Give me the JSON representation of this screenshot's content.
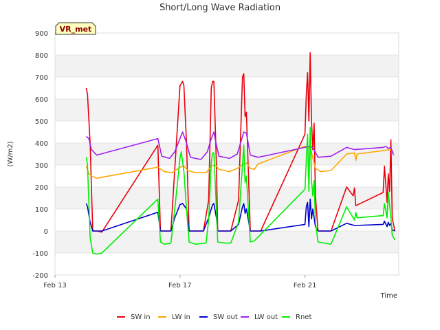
{
  "chart_data": {
    "type": "line",
    "title": "Short/Long Wave Radiation",
    "xlabel": "Time",
    "ylabel": "(W/m2)",
    "badge": "VR_met",
    "x_domain": [
      "2023-02-13",
      "2023-02-24"
    ],
    "x_ticks": [
      {
        "value": "2023-02-13",
        "label": "Feb 13"
      },
      {
        "value": "2023-02-17",
        "label": "Feb 17"
      },
      {
        "value": "2023-02-21",
        "label": "Feb 21"
      }
    ],
    "ylim": [
      -200,
      900
    ],
    "y_ticks": [
      -200,
      -100,
      0,
      100,
      200,
      300,
      400,
      500,
      600,
      700,
      800,
      900
    ],
    "grid": "horizontal alternating bands",
    "legend_position": "bottom",
    "series": [
      {
        "name": "SW in",
        "color": "#e8000b",
        "points": [
          [
            "2023-02-14 00:00",
            650
          ],
          [
            "2023-02-14 01:00",
            620
          ],
          [
            "2023-02-14 03:00",
            400
          ],
          [
            "2023-02-14 05:00",
            0
          ],
          [
            "2023-02-14 08:00",
            0
          ],
          [
            "2023-02-14 12:00",
            -5
          ],
          [
            "2023-02-16 07:00",
            390
          ],
          [
            "2023-02-16 09:00",
            0
          ],
          [
            "2023-02-16 12:00",
            0
          ],
          [
            "2023-02-16 17:00",
            0
          ],
          [
            "2023-02-16 20:00",
            280
          ],
          [
            "2023-02-17 00:00",
            660
          ],
          [
            "2023-02-17 02:00",
            680
          ],
          [
            "2023-02-17 03:00",
            660
          ],
          [
            "2023-02-17 05:00",
            400
          ],
          [
            "2023-02-17 07:00",
            0
          ],
          [
            "2023-02-17 18:00",
            0
          ],
          [
            "2023-02-17 22:00",
            140
          ],
          [
            "2023-02-18 00:00",
            650
          ],
          [
            "2023-02-18 01:00",
            680
          ],
          [
            "2023-02-18 02:00",
            680
          ],
          [
            "2023-02-18 04:00",
            300
          ],
          [
            "2023-02-18 05:00",
            0
          ],
          [
            "2023-02-18 15:00",
            0
          ],
          [
            "2023-02-18 21:00",
            140
          ],
          [
            "2023-02-19 00:00",
            700
          ],
          [
            "2023-02-19 01:00",
            715
          ],
          [
            "2023-02-19 02:00",
            520
          ],
          [
            "2023-02-19 03:00",
            540
          ],
          [
            "2023-02-19 06:00",
            0
          ],
          [
            "2023-02-19 14:00",
            0
          ],
          [
            "2023-02-21 00:00",
            440
          ],
          [
            "2023-02-21 01:00",
            620
          ],
          [
            "2023-02-21 02:00",
            720
          ],
          [
            "2023-02-21 03:00",
            500
          ],
          [
            "2023-02-21 04:00",
            810
          ],
          [
            "2023-02-21 05:00",
            500
          ],
          [
            "2023-02-21 06:00",
            370
          ],
          [
            "2023-02-21 07:00",
            490
          ],
          [
            "2023-02-21 08:00",
            160
          ],
          [
            "2023-02-21 10:00",
            0
          ],
          [
            "2023-02-21 15:00",
            0
          ],
          [
            "2023-02-21 20:00",
            0
          ],
          [
            "2023-02-22 08:00",
            200
          ],
          [
            "2023-02-22 13:00",
            160
          ],
          [
            "2023-02-22 14:00",
            195
          ],
          [
            "2023-02-22 15:00",
            115
          ],
          [
            "2023-02-23 12:00",
            175
          ],
          [
            "2023-02-23 13:00",
            295
          ],
          [
            "2023-02-23 15:00",
            130
          ],
          [
            "2023-02-23 16:00",
            260
          ],
          [
            "2023-02-23 17:00",
            180
          ],
          [
            "2023-02-23 18:00",
            415
          ],
          [
            "2023-02-23 19:00",
            60
          ],
          [
            "2023-02-23 21:00",
            0
          ]
        ]
      },
      {
        "name": "LW in",
        "color": "#ffa500",
        "points": [
          [
            "2023-02-14 00:00",
            295
          ],
          [
            "2023-02-14 02:00",
            260
          ],
          [
            "2023-02-14 04:00",
            250
          ],
          [
            "2023-02-14 08:00",
            240
          ],
          [
            "2023-02-16 07:00",
            290
          ],
          [
            "2023-02-16 12:00",
            270
          ],
          [
            "2023-02-16 18:00",
            265
          ],
          [
            "2023-02-17 00:00",
            290
          ],
          [
            "2023-02-17 03:00",
            295
          ],
          [
            "2023-02-17 06:00",
            275
          ],
          [
            "2023-02-17 12:00",
            265
          ],
          [
            "2023-02-17 20:00",
            265
          ],
          [
            "2023-02-18 00:00",
            295
          ],
          [
            "2023-02-18 03:00",
            300
          ],
          [
            "2023-02-18 06:00",
            280
          ],
          [
            "2023-02-18 14:00",
            270
          ],
          [
            "2023-02-18 20:00",
            285
          ],
          [
            "2023-02-19 00:00",
            300
          ],
          [
            "2023-02-19 03:00",
            310
          ],
          [
            "2023-02-19 06:00",
            285
          ],
          [
            "2023-02-19 09:00",
            280
          ],
          [
            "2023-02-19 12:00",
            305
          ],
          [
            "2023-02-21 00:00",
            385
          ],
          [
            "2023-02-21 04:00",
            380
          ],
          [
            "2023-02-21 08:00",
            285
          ],
          [
            "2023-02-21 12:00",
            270
          ],
          [
            "2023-02-21 20:00",
            275
          ],
          [
            "2023-02-22 08:00",
            350
          ],
          [
            "2023-02-22 14:00",
            355
          ],
          [
            "2023-02-22 15:00",
            320
          ],
          [
            "2023-02-22 16:00",
            350
          ],
          [
            "2023-02-23 18:00",
            370
          ],
          [
            "2023-02-23 20:00",
            355
          ]
        ]
      },
      {
        "name": "SW out",
        "color": "#0000cc",
        "points": [
          [
            "2023-02-14 00:00",
            125
          ],
          [
            "2023-02-14 01:00",
            110
          ],
          [
            "2023-02-14 03:00",
            40
          ],
          [
            "2023-02-14 05:00",
            0
          ],
          [
            "2023-02-14 12:00",
            0
          ],
          [
            "2023-02-16 07:00",
            85
          ],
          [
            "2023-02-16 09:00",
            0
          ],
          [
            "2023-02-16 17:00",
            0
          ],
          [
            "2023-02-16 20:00",
            60
          ],
          [
            "2023-02-17 00:00",
            120
          ],
          [
            "2023-02-17 02:00",
            125
          ],
          [
            "2023-02-17 05:00",
            100
          ],
          [
            "2023-02-17 07:00",
            0
          ],
          [
            "2023-02-17 18:00",
            0
          ],
          [
            "2023-02-17 22:00",
            60
          ],
          [
            "2023-02-18 01:00",
            120
          ],
          [
            "2023-02-18 02:00",
            125
          ],
          [
            "2023-02-18 04:00",
            60
          ],
          [
            "2023-02-18 05:00",
            0
          ],
          [
            "2023-02-18 15:00",
            0
          ],
          [
            "2023-02-18 21:00",
            30
          ],
          [
            "2023-02-19 00:00",
            110
          ],
          [
            "2023-02-19 01:00",
            125
          ],
          [
            "2023-02-19 02:00",
            80
          ],
          [
            "2023-02-19 03:00",
            100
          ],
          [
            "2023-02-19 06:00",
            0
          ],
          [
            "2023-02-19 14:00",
            0
          ],
          [
            "2023-02-21 00:00",
            30
          ],
          [
            "2023-02-21 01:00",
            110
          ],
          [
            "2023-02-21 02:00",
            130
          ],
          [
            "2023-02-21 03:00",
            20
          ],
          [
            "2023-02-21 04:00",
            145
          ],
          [
            "2023-02-21 05:00",
            55
          ],
          [
            "2023-02-21 06:00",
            100
          ],
          [
            "2023-02-21 08:00",
            20
          ],
          [
            "2023-02-21 10:00",
            0
          ],
          [
            "2023-02-21 20:00",
            0
          ],
          [
            "2023-02-22 08:00",
            35
          ],
          [
            "2023-02-22 14:00",
            25
          ],
          [
            "2023-02-23 12:00",
            30
          ],
          [
            "2023-02-23 13:00",
            45
          ],
          [
            "2023-02-23 15:00",
            20
          ],
          [
            "2023-02-23 16:00",
            40
          ],
          [
            "2023-02-23 17:00",
            25
          ],
          [
            "2023-02-23 18:00",
            35
          ],
          [
            "2023-02-23 19:00",
            5
          ],
          [
            "2023-02-23 21:00",
            0
          ]
        ]
      },
      {
        "name": "LW out",
        "color": "#a020f0",
        "points": [
          [
            "2023-02-14 00:00",
            430
          ],
          [
            "2023-02-14 02:00",
            420
          ],
          [
            "2023-02-14 04:00",
            370
          ],
          [
            "2023-02-14 08:00",
            345
          ],
          [
            "2023-02-16 07:00",
            420
          ],
          [
            "2023-02-16 10:00",
            340
          ],
          [
            "2023-02-16 16:00",
            330
          ],
          [
            "2023-02-16 20:00",
            360
          ],
          [
            "2023-02-17 00:00",
            420
          ],
          [
            "2023-02-17 02:00",
            450
          ],
          [
            "2023-02-17 05:00",
            400
          ],
          [
            "2023-02-17 08:00",
            335
          ],
          [
            "2023-02-17 16:00",
            325
          ],
          [
            "2023-02-17 21:00",
            360
          ],
          [
            "2023-02-18 00:00",
            420
          ],
          [
            "2023-02-18 02:00",
            450
          ],
          [
            "2023-02-18 04:00",
            390
          ],
          [
            "2023-02-18 06:00",
            340
          ],
          [
            "2023-02-18 14:00",
            330
          ],
          [
            "2023-02-18 20:00",
            350
          ],
          [
            "2023-02-19 00:00",
            430
          ],
          [
            "2023-02-19 01:00",
            450
          ],
          [
            "2023-02-19 03:00",
            445
          ],
          [
            "2023-02-19 06:00",
            345
          ],
          [
            "2023-02-19 12:00",
            335
          ],
          [
            "2023-02-21 00:00",
            380
          ],
          [
            "2023-02-21 03:00",
            385
          ],
          [
            "2023-02-21 06:00",
            380
          ],
          [
            "2023-02-21 10:00",
            335
          ],
          [
            "2023-02-21 20:00",
            340
          ],
          [
            "2023-02-22 08:00",
            380
          ],
          [
            "2023-02-22 14:00",
            370
          ],
          [
            "2023-02-23 12:00",
            380
          ],
          [
            "2023-02-23 14:00",
            385
          ],
          [
            "2023-02-23 16:00",
            375
          ],
          [
            "2023-02-23 18:00",
            380
          ],
          [
            "2023-02-23 20:00",
            345
          ]
        ]
      },
      {
        "name": "Rnet",
        "color": "#00ee00",
        "points": [
          [
            "2023-02-14 00:00",
            335
          ],
          [
            "2023-02-14 01:00",
            300
          ],
          [
            "2023-02-14 03:00",
            -30
          ],
          [
            "2023-02-14 05:00",
            -100
          ],
          [
            "2023-02-14 08:00",
            -105
          ],
          [
            "2023-02-14 12:00",
            -100
          ],
          [
            "2023-02-16 07:00",
            145
          ],
          [
            "2023-02-16 09:00",
            -50
          ],
          [
            "2023-02-16 12:00",
            -60
          ],
          [
            "2023-02-16 17:00",
            -55
          ],
          [
            "2023-02-16 20:00",
            100
          ],
          [
            "2023-02-17 00:00",
            330
          ],
          [
            "2023-02-17 01:00",
            360
          ],
          [
            "2023-02-17 03:00",
            270
          ],
          [
            "2023-02-17 05:00",
            100
          ],
          [
            "2023-02-17 07:00",
            -50
          ],
          [
            "2023-02-17 12:00",
            -60
          ],
          [
            "2023-02-17 20:00",
            -55
          ],
          [
            "2023-02-17 22:00",
            50
          ],
          [
            "2023-02-18 00:00",
            310
          ],
          [
            "2023-02-18 01:00",
            355
          ],
          [
            "2023-02-18 02:00",
            355
          ],
          [
            "2023-02-18 04:00",
            100
          ],
          [
            "2023-02-18 05:00",
            -50
          ],
          [
            "2023-02-18 10:00",
            -55
          ],
          [
            "2023-02-18 15:00",
            -55
          ],
          [
            "2023-02-18 21:00",
            40
          ],
          [
            "2023-02-19 00:00",
            300
          ],
          [
            "2023-02-19 01:00",
            390
          ],
          [
            "2023-02-19 02:00",
            220
          ],
          [
            "2023-02-19 03:00",
            250
          ],
          [
            "2023-02-19 06:00",
            -50
          ],
          [
            "2023-02-19 09:00",
            -45
          ],
          [
            "2023-02-21 00:00",
            190
          ],
          [
            "2023-02-21 01:00",
            320
          ],
          [
            "2023-02-21 02:00",
            440
          ],
          [
            "2023-02-21 03:00",
            180
          ],
          [
            "2023-02-21 04:00",
            470
          ],
          [
            "2023-02-21 05:00",
            230
          ],
          [
            "2023-02-21 06:00",
            160
          ],
          [
            "2023-02-21 07:00",
            230
          ],
          [
            "2023-02-21 08:00",
            40
          ],
          [
            "2023-02-21 10:00",
            -50
          ],
          [
            "2023-02-21 15:00",
            -55
          ],
          [
            "2023-02-21 20:00",
            -60
          ],
          [
            "2023-02-22 08:00",
            110
          ],
          [
            "2023-02-22 14:00",
            50
          ],
          [
            "2023-02-22 15:00",
            85
          ],
          [
            "2023-02-22 16:00",
            60
          ],
          [
            "2023-02-23 12:00",
            70
          ],
          [
            "2023-02-23 13:00",
            125
          ],
          [
            "2023-02-23 15:00",
            60
          ],
          [
            "2023-02-23 16:00",
            175
          ],
          [
            "2023-02-23 18:00",
            60
          ],
          [
            "2023-02-23 19:00",
            -20
          ],
          [
            "2023-02-23 21:00",
            -40
          ]
        ]
      }
    ]
  }
}
